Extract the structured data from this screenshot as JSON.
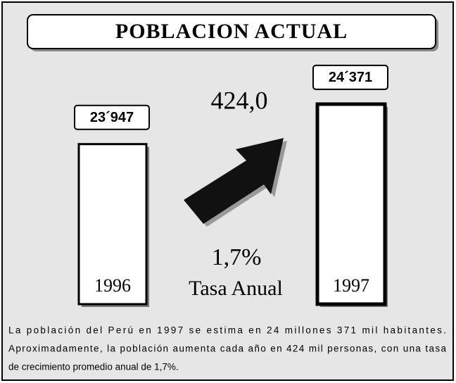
{
  "chart_data": {
    "type": "bar",
    "title": "POBLACION ACTUAL",
    "categories": [
      "1996",
      "1997"
    ],
    "values": [
      23947,
      24371
    ],
    "value_labels": [
      "23´947",
      "24´371"
    ],
    "color": "#ffffff",
    "ylim": [
      22250,
      24430
    ],
    "annotations": {
      "increase": "424,0",
      "rate": "1,7%",
      "rate_label": "Tasa Anual"
    },
    "description": [
      "La población del Perú en 1997 se estima en 24 millones 371 mil habitantes.",
      "Aproximadamente, la población aumenta cada año en 424 mil personas, con una tasa",
      "de crecimiento promedio anual de 1,7%."
    ]
  }
}
